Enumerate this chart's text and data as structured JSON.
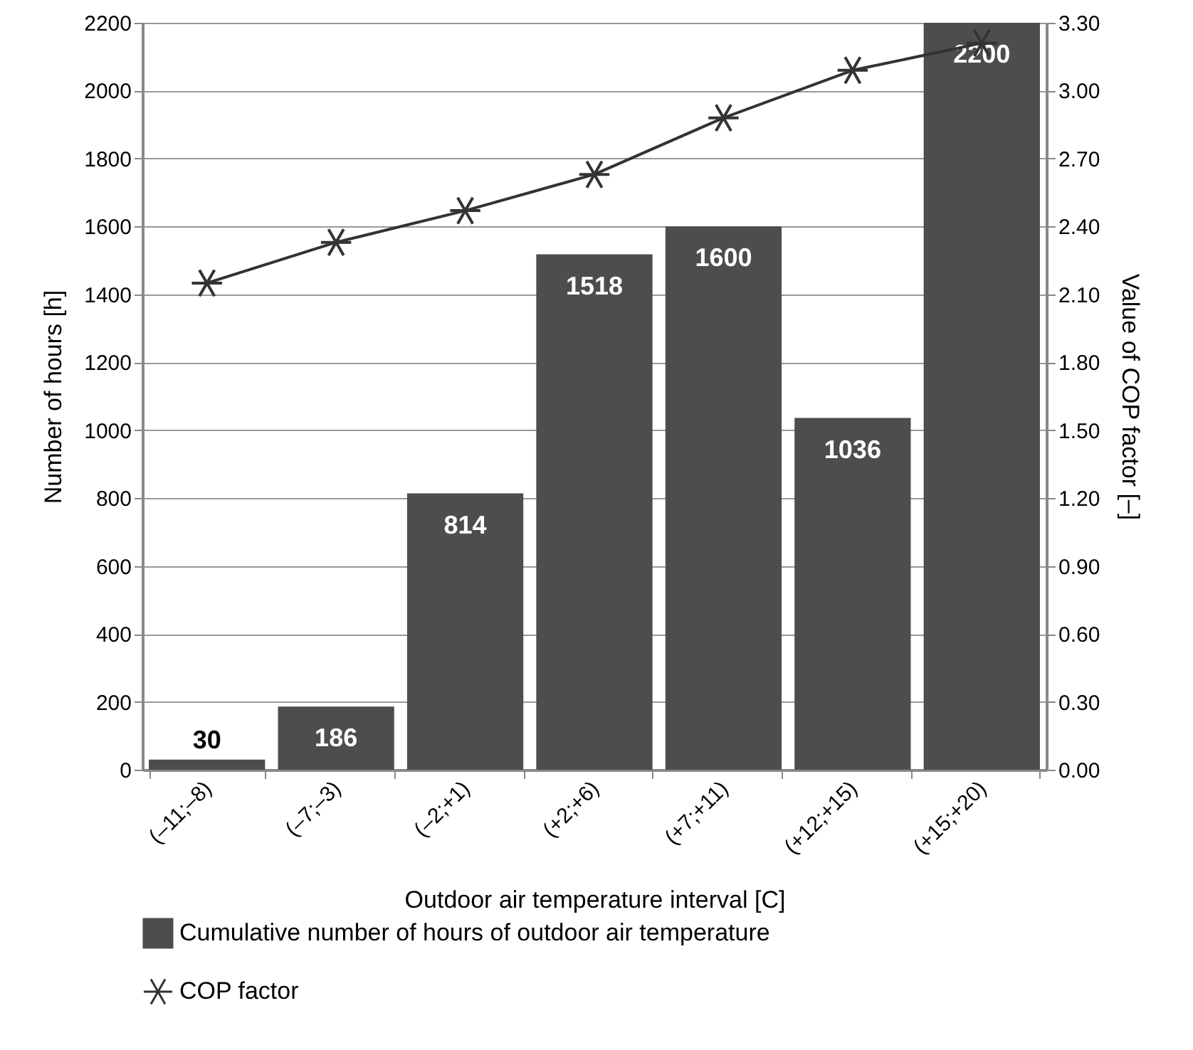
{
  "chart_data": {
    "type": "bar",
    "xlabel": "Outdoor air temperature interval [C]",
    "ylabel": "Number of hours [h]",
    "y2label": "Value of COP factor [–]",
    "categories": [
      "(–11;–8)",
      "(–7;–3)",
      "(–2;+1)",
      "(+2;+6)",
      "(+7;+11)",
      "(+12;+15)",
      "(+15;+20)"
    ],
    "series": [
      {
        "name": "Cumulative number of hours of outdoor air temperature",
        "color": "#4d4d4d",
        "values": [
          30,
          186,
          814,
          1518,
          1600,
          1036,
          2200
        ],
        "value_labels": [
          "30",
          "186",
          "814",
          "1518",
          "1600",
          "1036",
          "2200"
        ]
      },
      {
        "name": "COP factor",
        "type": "line",
        "axis": "y2",
        "color": "#333333",
        "marker": "cross",
        "values": [
          2.15,
          2.33,
          2.47,
          2.63,
          2.88,
          3.09,
          3.21
        ]
      }
    ],
    "ylim": [
      0,
      2200
    ],
    "yticks": [
      0,
      200,
      400,
      600,
      800,
      1000,
      1200,
      1400,
      1600,
      1800,
      2000,
      2200
    ],
    "y2lim": [
      0,
      3.3
    ],
    "y2ticks": [
      {
        "value": 0,
        "label": "0.00"
      },
      {
        "value": 0.3,
        "label": "0.30"
      },
      {
        "value": 0.6,
        "label": "0.60"
      },
      {
        "value": 0.9,
        "label": "0.90"
      },
      {
        "value": 1.2,
        "label": "1.20"
      },
      {
        "value": 1.5,
        "label": "1.50"
      },
      {
        "value": 1.8,
        "label": "1.80"
      },
      {
        "value": 2.1,
        "label": "2.10"
      },
      {
        "value": 2.4,
        "label": "2.40"
      },
      {
        "value": 2.7,
        "label": "2.70"
      },
      {
        "value": 3.0,
        "label": "3.00"
      },
      {
        "value": 3.3,
        "label": "3.30"
      }
    ],
    "grid": "y",
    "legend": "bottom"
  }
}
